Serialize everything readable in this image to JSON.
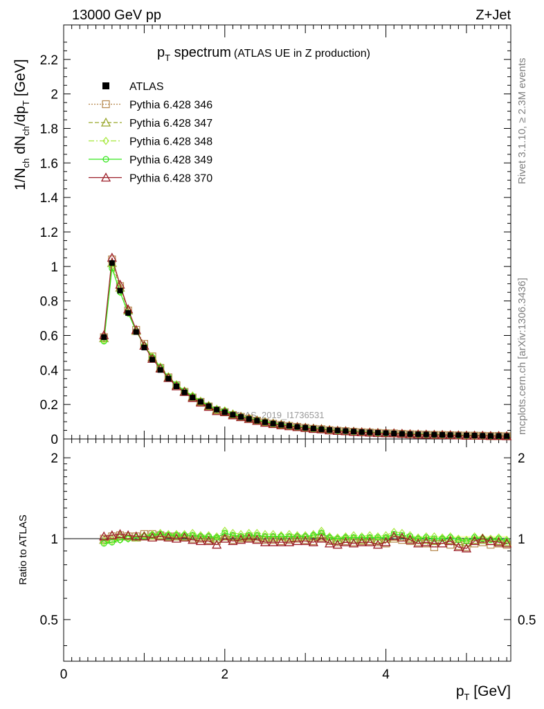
{
  "header": {
    "left": "13000 GeV pp",
    "right": "Z+Jet"
  },
  "side_labels": {
    "rivet": "Rivet 3.1.10, ≥ 2.3M events",
    "mcplots": "mcplots.cern.ch [arXiv:1306.3436]"
  },
  "colors": {
    "atlas": "#000000",
    "p346": "#b5854a",
    "p347": "#99a62b",
    "p348": "#a5e83a",
    "p349": "#33e61a",
    "p370": "#9b1c26",
    "band_outer": "#fdfdb6",
    "band_inner": "#a8e8d8",
    "watermark": "#9a9a9a"
  },
  "chart_data": {
    "type": "line",
    "title_main": "p",
    "title_sub": "T",
    "title_word": " spectrum",
    "title_extra": "(ATLAS UE in Z production)",
    "watermark": "ATLAS_2019_I1736531",
    "ylabel": "1/N",
    "ylabel_parts": [
      "1/N",
      "ch",
      " dN",
      "ch",
      "/dp",
      "T",
      " [GeV]"
    ],
    "xlabel": "p",
    "xlabel_sub": "T",
    "xlabel_unit": " [GeV]",
    "ratio_label": "Ratio to ATLAS",
    "xlim": [
      0,
      5.55
    ],
    "ylim": [
      0,
      2.4
    ],
    "ratio_ylim": [
      0.35,
      2.35
    ],
    "main_ticks": [
      "0",
      "0.2",
      "0.4",
      "0.6",
      "0.8",
      "1",
      "1.2",
      "1.4",
      "1.6",
      "1.8",
      "2",
      "2.2"
    ],
    "ratio_ticks": [
      "0.5",
      "1",
      "2"
    ],
    "x_ticks": [
      "0",
      "2",
      "4"
    ],
    "legend": [
      {
        "key": "atlas",
        "label": "ATLAS"
      },
      {
        "key": "p346",
        "label": "Pythia 6.428 346"
      },
      {
        "key": "p347",
        "label": "Pythia 6.428 347"
      },
      {
        "key": "p348",
        "label": "Pythia 6.428 348"
      },
      {
        "key": "p349",
        "label": "Pythia 6.428 349"
      },
      {
        "key": "p370",
        "label": "Pythia 6.428 370"
      }
    ],
    "x": [
      0.5,
      0.6,
      0.7,
      0.8,
      0.9,
      1.0,
      1.1,
      1.2,
      1.3,
      1.4,
      1.5,
      1.6,
      1.7,
      1.8,
      1.9,
      2.0,
      2.1,
      2.2,
      2.3,
      2.4,
      2.5,
      2.6,
      2.7,
      2.8,
      2.9,
      3.0,
      3.1,
      3.2,
      3.3,
      3.4,
      3.5,
      3.6,
      3.7,
      3.8,
      3.9,
      4.0,
      4.1,
      4.2,
      4.3,
      4.4,
      4.5,
      4.6,
      4.7,
      4.8,
      4.9,
      5.0,
      5.1,
      5.2,
      5.3,
      5.4,
      5.5
    ],
    "atlas": [
      0.59,
      1.02,
      0.86,
      0.73,
      0.62,
      0.53,
      0.46,
      0.4,
      0.35,
      0.305,
      0.27,
      0.24,
      0.215,
      0.19,
      0.17,
      0.155,
      0.14,
      0.128,
      0.116,
      0.106,
      0.097,
      0.089,
      0.082,
      0.076,
      0.07,
      0.065,
      0.06,
      0.056,
      0.052,
      0.049,
      0.046,
      0.043,
      0.04,
      0.038,
      0.036,
      0.034,
      0.032,
      0.03,
      0.028,
      0.027,
      0.026,
      0.025,
      0.024,
      0.023,
      0.022,
      0.021,
      0.02,
      0.019,
      0.018,
      0.018,
      0.017
    ],
    "series": [
      {
        "key": "p346",
        "name": "Pythia 6.428 346",
        "marker": "square",
        "dash": "2,2",
        "ratio": [
          1.0,
          1.02,
          1.03,
          1.02,
          1.02,
          1.04,
          1.04,
          1.03,
          1.02,
          1.02,
          1.01,
          1.0,
          1.0,
          0.99,
          0.98,
          1.0,
          0.99,
          1.0,
          1.01,
          1.0,
          0.99,
          0.99,
          0.98,
          0.99,
          1.0,
          0.99,
          0.98,
          1.01,
          0.98,
          0.97,
          0.98,
          0.97,
          0.98,
          0.98,
          0.97,
          0.96,
          1.0,
          0.99,
          0.98,
          0.97,
          0.96,
          0.93,
          0.96,
          0.95,
          0.94,
          0.93,
          0.96,
          0.97,
          0.95,
          0.96,
          0.95
        ]
      },
      {
        "key": "p347",
        "name": "Pythia 6.428 347",
        "marker": "triangle",
        "dash": "6,3",
        "ratio": [
          0.99,
          1.0,
          1.02,
          1.02,
          1.01,
          1.02,
          1.03,
          1.03,
          1.02,
          1.02,
          1.02,
          1.02,
          1.01,
          1.01,
          1.0,
          1.02,
          1.02,
          1.01,
          1.02,
          1.02,
          1.01,
          1.01,
          1.02,
          1.01,
          1.01,
          1.01,
          1.02,
          1.04,
          1.0,
          0.99,
          1.0,
          1.0,
          0.99,
          1.0,
          0.99,
          1.0,
          1.02,
          1.01,
          1.0,
          0.99,
          0.99,
          0.98,
          0.99,
          0.99,
          0.98,
          0.97,
          0.99,
          0.99,
          0.98,
          0.98,
          0.97
        ]
      },
      {
        "key": "p348",
        "name": "Pythia 6.428 348",
        "marker": "diamond",
        "dash": "8,3,2,3",
        "ratio": [
          0.97,
          0.98,
          0.99,
          1.0,
          1.01,
          1.03,
          1.04,
          1.05,
          1.04,
          1.04,
          1.04,
          1.05,
          1.03,
          1.03,
          1.02,
          1.07,
          1.05,
          1.04,
          1.05,
          1.05,
          1.04,
          1.04,
          1.03,
          1.04,
          1.03,
          1.03,
          1.04,
          1.07,
          1.02,
          1.01,
          1.02,
          1.03,
          1.02,
          1.03,
          1.02,
          1.03,
          1.06,
          1.05,
          1.03,
          1.01,
          1.02,
          1.02,
          1.01,
          1.02,
          1.0,
          0.99,
          1.02,
          1.01,
          1.0,
          1.01,
          0.99
        ]
      },
      {
        "key": "p349",
        "name": "Pythia 6.428 349",
        "marker": "circle",
        "dash": "",
        "ratio": [
          0.96,
          0.97,
          0.99,
          1.0,
          1.01,
          1.02,
          1.03,
          1.04,
          1.03,
          1.03,
          1.03,
          1.03,
          1.02,
          1.02,
          1.01,
          1.05,
          1.03,
          1.02,
          1.03,
          1.03,
          1.02,
          1.02,
          1.02,
          1.02,
          1.02,
          1.02,
          1.03,
          1.05,
          1.01,
          1.0,
          1.01,
          1.01,
          1.01,
          1.01,
          1.01,
          1.01,
          1.04,
          1.03,
          1.02,
          1.0,
          1.01,
          1.0,
          1.0,
          1.01,
          0.99,
          0.98,
          1.01,
          1.0,
          0.99,
          1.0,
          0.98
        ]
      },
      {
        "key": "p370",
        "name": "Pythia 6.428 370",
        "marker": "triangle",
        "dash": "",
        "ratio": [
          1.02,
          1.03,
          1.04,
          1.03,
          1.02,
          1.02,
          1.01,
          1.02,
          1.01,
          1.0,
          1.01,
          0.99,
          0.98,
          0.98,
          0.95,
          1.0,
          0.98,
          0.99,
          1.0,
          0.99,
          0.97,
          0.97,
          0.97,
          0.97,
          0.98,
          0.98,
          0.97,
          1.0,
          0.96,
          0.95,
          0.97,
          0.96,
          0.97,
          0.97,
          0.95,
          0.97,
          1.02,
          1.01,
          0.99,
          0.96,
          0.97,
          0.96,
          0.96,
          0.98,
          0.93,
          0.92,
          0.98,
          1.0,
          0.98,
          0.97,
          0.96
        ]
      }
    ]
  }
}
